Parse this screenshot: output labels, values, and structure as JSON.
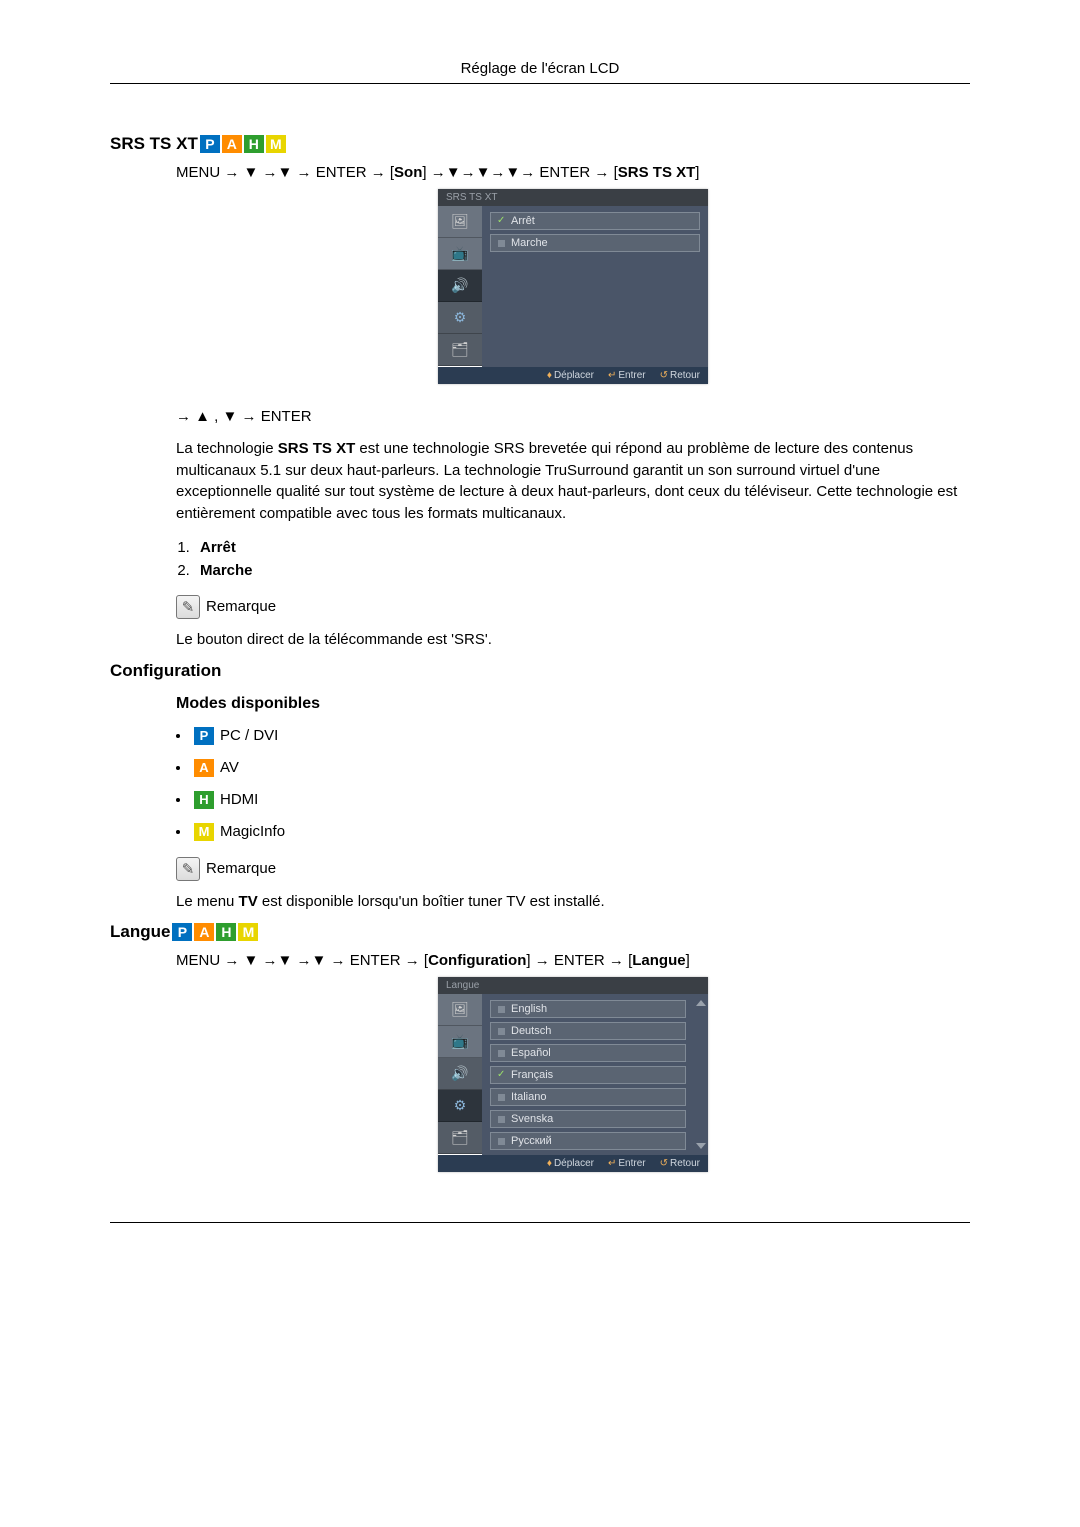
{
  "header": {
    "title": "Réglage de l'écran LCD"
  },
  "badges": {
    "p": {
      "letter": "P",
      "color": "#0070c0"
    },
    "a": {
      "letter": "A",
      "color": "#ff8c00"
    },
    "h": {
      "letter": "H",
      "color": "#2e9e2e"
    },
    "m": {
      "letter": "M",
      "color": "#e8d500"
    }
  },
  "srs": {
    "title": "SRS TS XT",
    "path_prefix": "MENU → ▼ →▼ → ENTER → [",
    "path_son": "Son",
    "path_mid": "] →▼→▼→▼→ ENTER → [",
    "path_end_label": "SRS TS XT",
    "path_end": "]",
    "osd": {
      "title": "SRS TS XT",
      "items": [
        "Arrêt",
        "Marche"
      ],
      "footer": {
        "move": "Déplacer",
        "enter": "Entrer",
        "return": "Retour"
      }
    },
    "nav_line": "→ ▲ , ▼ → ENTER",
    "desc_a": "La technologie ",
    "desc_bold": "SRS TS XT",
    "desc_b": " est une technologie SRS brevetée qui répond au problème de lecture des contenus multicanaux 5.1 sur deux haut-parleurs. La technologie TruSurround garantit un son surround virtuel d'une exceptionnelle qualité sur tout système de lecture à deux haut-parleurs, dont ceux du téléviseur. Cette technologie est entièrement compatible avec tous les formats multicanaux.",
    "options": [
      "Arrêt",
      "Marche"
    ],
    "note_label": "Remarque",
    "note_text": "Le bouton direct de la télécommande est 'SRS'."
  },
  "config": {
    "title": "Configuration",
    "modes_title": "Modes disponibles",
    "modes": [
      {
        "badge": "P",
        "color": "#0070c0",
        "label": "PC / DVI"
      },
      {
        "badge": "A",
        "color": "#ff8c00",
        "label": "AV"
      },
      {
        "badge": "H",
        "color": "#2e9e2e",
        "label": "HDMI"
      },
      {
        "badge": "M",
        "color": "#e8d500",
        "label": "MagicInfo"
      }
    ],
    "note_label": "Remarque",
    "note_a": "Le menu ",
    "note_bold": "TV",
    "note_b": " est disponible lorsqu'un boîtier tuner TV est installé."
  },
  "langue": {
    "title": "Langue",
    "path_prefix": "MENU → ▼ →▼ →▼ → ENTER → [",
    "path_cfg": "Configuration",
    "path_mid": "] → ENTER → [",
    "path_end_label": "Langue",
    "path_end": "]",
    "osd": {
      "title": "Langue",
      "items": [
        "English",
        "Deutsch",
        "Español",
        "Français",
        "Italiano",
        "Svenska",
        "Русский"
      ],
      "selected_index": 3,
      "footer": {
        "move": "Déplacer",
        "enter": "Entrer",
        "return": "Retour"
      }
    }
  }
}
